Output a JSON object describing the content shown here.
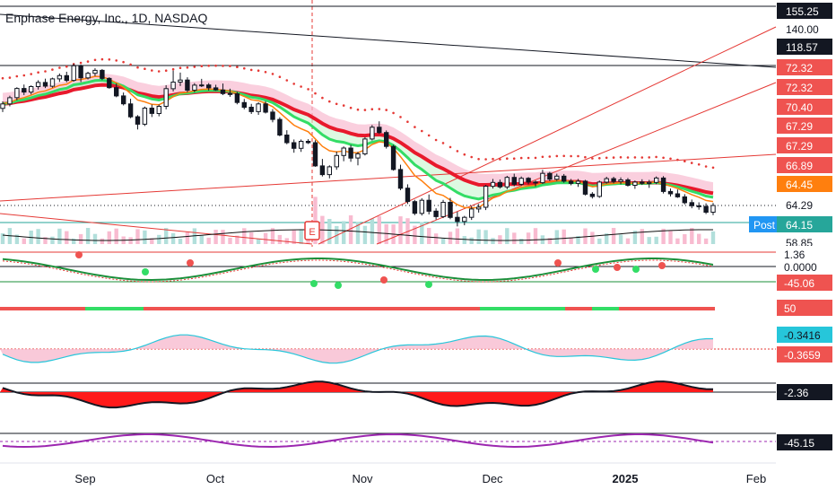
{
  "title": "Enphase Energy, Inc., 1D, NASDAQ",
  "colors": {
    "up": "#26a69a",
    "down": "#ef5350",
    "ema_fast": "#ff7f0e",
    "ema_slow": "#e8192c",
    "ribbon_green": "#33dd66",
    "ribbon_blue": "#2196f3",
    "trendline": "#e53935",
    "vwap_line": "#111111",
    "purple": "#9c27b0",
    "post_badge": "#2196f3"
  },
  "price_scale_labels": [
    {
      "text": "155.25",
      "bg": "#131722",
      "fg": "#ffffff"
    },
    {
      "text": "140.00",
      "bg": "#ffffff",
      "fg": "#131722"
    },
    {
      "text": "118.57",
      "bg": "#131722",
      "fg": "#ffffff"
    },
    {
      "text": "72.32",
      "bg": "#ef5350",
      "fg": "#ffffff"
    },
    {
      "text": "72.32",
      "bg": "#ef5350",
      "fg": "#ffffff"
    },
    {
      "text": "70.40",
      "bg": "#ef5350",
      "fg": "#ffffff"
    },
    {
      "text": "67.29",
      "bg": "#ef5350",
      "fg": "#ffffff"
    },
    {
      "text": "67.29",
      "bg": "#ef5350",
      "fg": "#ffffff"
    },
    {
      "text": "66.89",
      "bg": "#ef5350",
      "fg": "#ffffff"
    },
    {
      "text": "64.45",
      "bg": "#ff7f0e",
      "fg": "#ffffff"
    },
    {
      "text": "64.29",
      "bg": "#ffffff",
      "fg": "#131722"
    },
    {
      "text": "64.15",
      "bg": "#26a69a",
      "fg": "#ffffff"
    },
    {
      "text": "58.85",
      "bg": "#ffffff",
      "fg": "#131722"
    }
  ],
  "post_label": "Post",
  "earnings_marker": "E",
  "panel_labels": {
    "osc1_top": "1.36",
    "osc1_mid": "0.0000",
    "osc1_low": "-45.06",
    "osc2": "50",
    "osc3_a": "-0.3416",
    "osc3_b": "-0.3659",
    "osc4": "-2.36",
    "osc5": "-45.15"
  },
  "chart_data": {
    "type": "candlestick",
    "title": "Enphase Energy, Inc., 1D, NASDAQ",
    "x_ticks": [
      "Sep",
      "Oct",
      "Nov",
      "Dec",
      "2025",
      "Feb"
    ],
    "y_axis": {
      "scale": "log",
      "range": [
        57,
        160
      ]
    },
    "last_price": 64.29,
    "post_market_price": 64.15,
    "horizontal_levels": [
      155.25,
      118.57,
      64.29
    ],
    "ohlc": [
      [
        98.8,
        101.9,
        97.2,
        100.8
      ],
      [
        100.8,
        104.5,
        99.7,
        103.6
      ],
      [
        103.6,
        108.5,
        102.4,
        107.9
      ],
      [
        107.9,
        109.8,
        104.8,
        106.2
      ],
      [
        106.2,
        109.4,
        105.1,
        108.8
      ],
      [
        108.8,
        111.9,
        107.4,
        110.8
      ],
      [
        110.8,
        112.7,
        108.1,
        109.0
      ],
      [
        109.0,
        113.2,
        108.3,
        112.6
      ],
      [
        112.6,
        115.3,
        111.1,
        114.2
      ],
      [
        114.2,
        116.2,
        110.9,
        111.8
      ],
      [
        111.8,
        120.4,
        111.2,
        119.3
      ],
      [
        119.3,
        119.9,
        111.0,
        113.1
      ],
      [
        113.1,
        116.2,
        112.3,
        115.4
      ],
      [
        115.4,
        118.0,
        114.0,
        116.9
      ],
      [
        116.9,
        117.6,
        112.0,
        112.8
      ],
      [
        112.8,
        113.4,
        107.8,
        108.3
      ],
      [
        108.3,
        110.4,
        103.8,
        104.4
      ],
      [
        104.4,
        106.0,
        100.1,
        100.8
      ],
      [
        100.8,
        103.1,
        94.6,
        95.2
      ],
      [
        95.2,
        95.9,
        90.0,
        92.1
      ],
      [
        92.1,
        99.6,
        91.4,
        98.9
      ],
      [
        98.9,
        100.5,
        95.1,
        96.6
      ],
      [
        96.6,
        100.5,
        95.4,
        99.7
      ],
      [
        99.7,
        109.5,
        98.4,
        107.8
      ],
      [
        107.8,
        116.8,
        106.5,
        111.0
      ],
      [
        111.0,
        115.8,
        109.1,
        112.0
      ],
      [
        112.0,
        113.4,
        106.1,
        107.1
      ],
      [
        107.1,
        110.5,
        106.1,
        109.5
      ],
      [
        109.5,
        112.6,
        108.6,
        109.6
      ],
      [
        109.6,
        110.5,
        106.9,
        108.2
      ],
      [
        108.2,
        109.7,
        106.8,
        107.2
      ],
      [
        107.2,
        110.3,
        104.8,
        105.5
      ],
      [
        105.5,
        107.8,
        104.0,
        105.4
      ],
      [
        105.4,
        106.3,
        100.6,
        101.4
      ],
      [
        101.4,
        103.0,
        98.4,
        99.3
      ],
      [
        99.3,
        100.8,
        96.4,
        97.4
      ],
      [
        97.4,
        101.5,
        96.0,
        100.8
      ],
      [
        100.8,
        102.0,
        96.6,
        97.2
      ],
      [
        97.2,
        98.5,
        92.9,
        94.1
      ],
      [
        94.1,
        95.0,
        87.3,
        87.8
      ],
      [
        87.8,
        89.7,
        84.3,
        84.9
      ],
      [
        84.9,
        86.1,
        81.2,
        82.8
      ],
      [
        82.8,
        86.1,
        81.5,
        85.4
      ],
      [
        85.4,
        86.2,
        84.4,
        84.9
      ],
      [
        84.9,
        85.8,
        76.3,
        76.6
      ],
      [
        76.6,
        79.0,
        73.1,
        73.7
      ],
      [
        73.7,
        76.8,
        72.5,
        76.3
      ],
      [
        76.3,
        81.6,
        75.3,
        80.2
      ],
      [
        80.2,
        83.5,
        78.2,
        82.9
      ],
      [
        82.9,
        84.1,
        78.0,
        79.3
      ],
      [
        79.3,
        81.5,
        76.8,
        80.8
      ],
      [
        80.8,
        87.0,
        80.2,
        86.3
      ],
      [
        86.3,
        91.8,
        85.7,
        90.9
      ],
      [
        90.9,
        93.3,
        88.2,
        88.8
      ],
      [
        88.8,
        89.6,
        82.7,
        83.5
      ],
      [
        83.5,
        84.1,
        75.0,
        75.4
      ],
      [
        75.4,
        77.0,
        68.8,
        69.4
      ],
      [
        69.4,
        70.6,
        64.7,
        65.4
      ],
      [
        65.4,
        65.9,
        61.6,
        62.1
      ],
      [
        62.1,
        66.4,
        61.5,
        65.8
      ],
      [
        65.8,
        67.5,
        61.8,
        62.7
      ],
      [
        62.7,
        63.5,
        60.4,
        61.2
      ],
      [
        61.2,
        65.9,
        60.8,
        65.2
      ],
      [
        65.2,
        66.5,
        60.5,
        61.0
      ],
      [
        61.0,
        62.5,
        58.6,
        59.9
      ],
      [
        59.9,
        61.4,
        58.9,
        61.0
      ],
      [
        61.0,
        64.1,
        60.3,
        63.3
      ],
      [
        63.3,
        64.7,
        62.3,
        63.8
      ],
      [
        63.8,
        70.4,
        63.0,
        70.0
      ],
      [
        70.0,
        72.3,
        69.3,
        71.2
      ],
      [
        71.2,
        72.1,
        69.3,
        69.8
      ],
      [
        69.8,
        73.3,
        69.1,
        72.8
      ],
      [
        72.8,
        74.0,
        70.0,
        70.6
      ],
      [
        70.6,
        73.1,
        70.1,
        72.5
      ],
      [
        72.5,
        72.9,
        70.6,
        71.3
      ],
      [
        71.3,
        71.8,
        69.9,
        71.1
      ],
      [
        71.1,
        75.3,
        70.7,
        74.1
      ],
      [
        74.1,
        74.6,
        71.6,
        72.2
      ],
      [
        72.2,
        74.0,
        71.7,
        73.2
      ],
      [
        73.2,
        73.9,
        71.1,
        71.6
      ],
      [
        71.6,
        72.3,
        70.3,
        70.9
      ],
      [
        70.9,
        72.3,
        69.8,
        71.6
      ],
      [
        71.6,
        72.0,
        67.2,
        67.6
      ],
      [
        67.6,
        68.2,
        66.3,
        66.9
      ],
      [
        66.9,
        71.8,
        66.5,
        71.3
      ],
      [
        71.3,
        73.0,
        70.8,
        72.4
      ],
      [
        72.4,
        73.0,
        70.9,
        71.5
      ],
      [
        71.5,
        72.8,
        70.6,
        72.0
      ],
      [
        72.0,
        72.6,
        69.9,
        70.3
      ],
      [
        70.3,
        71.8,
        69.2,
        71.3
      ],
      [
        71.3,
        72.2,
        70.4,
        70.9
      ],
      [
        70.9,
        72.0,
        69.5,
        71.2
      ],
      [
        71.2,
        73.1,
        70.6,
        72.6
      ],
      [
        72.6,
        73.2,
        67.8,
        68.4
      ],
      [
        68.4,
        69.3,
        66.9,
        67.7
      ],
      [
        67.7,
        69.0,
        66.5,
        66.8
      ],
      [
        66.8,
        67.6,
        64.6,
        65.1
      ],
      [
        65.1,
        66.0,
        63.5,
        64.2
      ],
      [
        64.2,
        65.2,
        63.1,
        64.0
      ],
      [
        64.0,
        64.9,
        61.9,
        62.4
      ],
      [
        62.4,
        65.0,
        61.6,
        64.29
      ]
    ],
    "series": [
      {
        "name": "EMA fast",
        "color": "#ff7f0e"
      },
      {
        "name": "EMA slow",
        "color": "#e8192c"
      }
    ]
  }
}
